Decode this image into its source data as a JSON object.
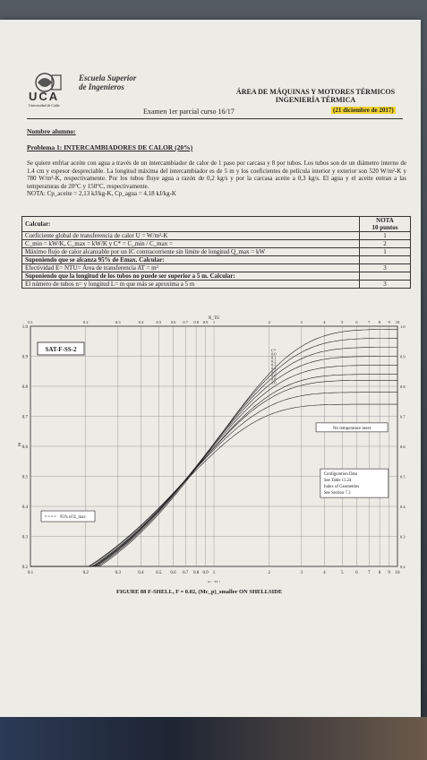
{
  "header": {
    "logo_text": "UCA",
    "logo_sub": "Universidad de Cádiz",
    "school_line1": "Escuela Superior",
    "school_line2": "de Ingenieros",
    "dept_line1": "ÁREA DE MÁQUINAS Y MOTORES TÉRMICOS",
    "dept_line2": "INGENIERÍA TÉRMICA",
    "exam": "Examen 1er parcial curso 16/17",
    "date": "(21 diciembre de 2017)"
  },
  "student_label": "Nombre alumno:",
  "problem_title": "Problema 1: INTERCAMBIADORES DE CALOR (20%)",
  "statement": "Se quiere enfriar aceite con agua a través de un intercambiador de calor de 1 paso por carcasa y 8 por tubos. Los tubos son de un diámetro interno de 1.4 cm y espesor despreciable. La longitud máxima del intercambiador es de 5 m y los coeficientes de película interior y exterior son 520 W/m²-K y 780 W/m²-K, respectivamente. Por los tubos fluye agua a razón de 0,2 kg/s y por la carcasa aceite a 0,3 kg/s. El agua y el aceite entran a las temperaturas de 20°C y 150°C, respectivamente.",
  "nota": "NOTA: Cp_aceite = 2,13 kJ/kg-K,  Cp_agua = 4,18 kJ/kg-K",
  "table": {
    "header": "Calcular:",
    "nota_header_1": "NOTA",
    "nota_header_2": "10 puntos",
    "rows": [
      {
        "text": "Coeficiente global de transferencia de calor     U =              W/m²-K",
        "score": "1",
        "bold": false
      },
      {
        "text": "C_min =           kW/K,    C_max =              kW/K   y   C* = C_min / C_max =",
        "score": "2",
        "bold": false
      },
      {
        "text": "Máximo flujo de calor alcanzable por un IC contracorriente sin límite de longitud    Q_max =          kW",
        "score": "1",
        "bold": false
      },
      {
        "text": "Suponiendo que se alcanza 95% de Emax. Calcular:",
        "score": "",
        "bold": true
      },
      {
        "text": "      Efectividad E=              NTU=              Área de transferencia AT =              m²",
        "score": "3",
        "bold": false
      },
      {
        "text": "Suponiendo que la longitud de los tubos no puede ser superior a 5 m. Calcular:",
        "score": "",
        "bold": true
      },
      {
        "text": "      El número de tubos n=          y longitud L=          m que más se aproxima a 5 m",
        "score": "3",
        "bold": false
      }
    ]
  },
  "chart_data": {
    "type": "line",
    "title": "SAT-F-SS-2",
    "caption": "FIGURE 88 F-SHELL, F = 0.02, (Mc_p)_smaller ON SHELLSIDE",
    "xlabel": "N_TU",
    "ylabel": "E",
    "x_scale": "log",
    "xlim": [
      0.1,
      10
    ],
    "ylim": [
      0.2,
      1.0
    ],
    "x_ticks": [
      "0.1",
      "0.2",
      "0.3",
      "0.4",
      "0.5",
      "0.6",
      "0.7",
      "0.8",
      "0.9",
      "1",
      "2",
      "3",
      "4",
      "5",
      "6",
      "7",
      "8",
      "9",
      "10"
    ],
    "y_ticks": [
      "0.2",
      "0.3",
      "0.4",
      "0.5",
      "0.6",
      "0.7",
      "0.8",
      "0.9",
      "1.0"
    ],
    "curve_labels": [
      "C*",
      "0.0",
      "0.1",
      "0.2",
      "0.3",
      "0.4",
      "0.5",
      "0.6",
      "0.8",
      "1.0"
    ],
    "series": [
      {
        "name": "0.0",
        "c": 0.0,
        "e_max": 0.99
      },
      {
        "name": "0.1",
        "c": 0.1,
        "e_max": 0.96
      },
      {
        "name": "0.2",
        "c": 0.2,
        "e_max": 0.93
      },
      {
        "name": "0.3",
        "c": 0.3,
        "e_max": 0.9
      },
      {
        "name": "0.4",
        "c": 0.4,
        "e_max": 0.87
      },
      {
        "name": "0.5",
        "c": 0.5,
        "e_max": 0.84
      },
      {
        "name": "0.6",
        "c": 0.6,
        "e_max": 0.82
      },
      {
        "name": "0.8",
        "c": 0.8,
        "e_max": 0.78
      },
      {
        "name": "1.0",
        "c": 1.0,
        "e_max": 0.74
      }
    ],
    "annotations": {
      "no_temp_meet": "No temperature meet",
      "config_1": "Configuration Data",
      "config_2": "See Table 13.24",
      "config_3": "Index of Geometries",
      "config_4": "See Section 7.3",
      "legend_95": "95% of E_max"
    }
  }
}
